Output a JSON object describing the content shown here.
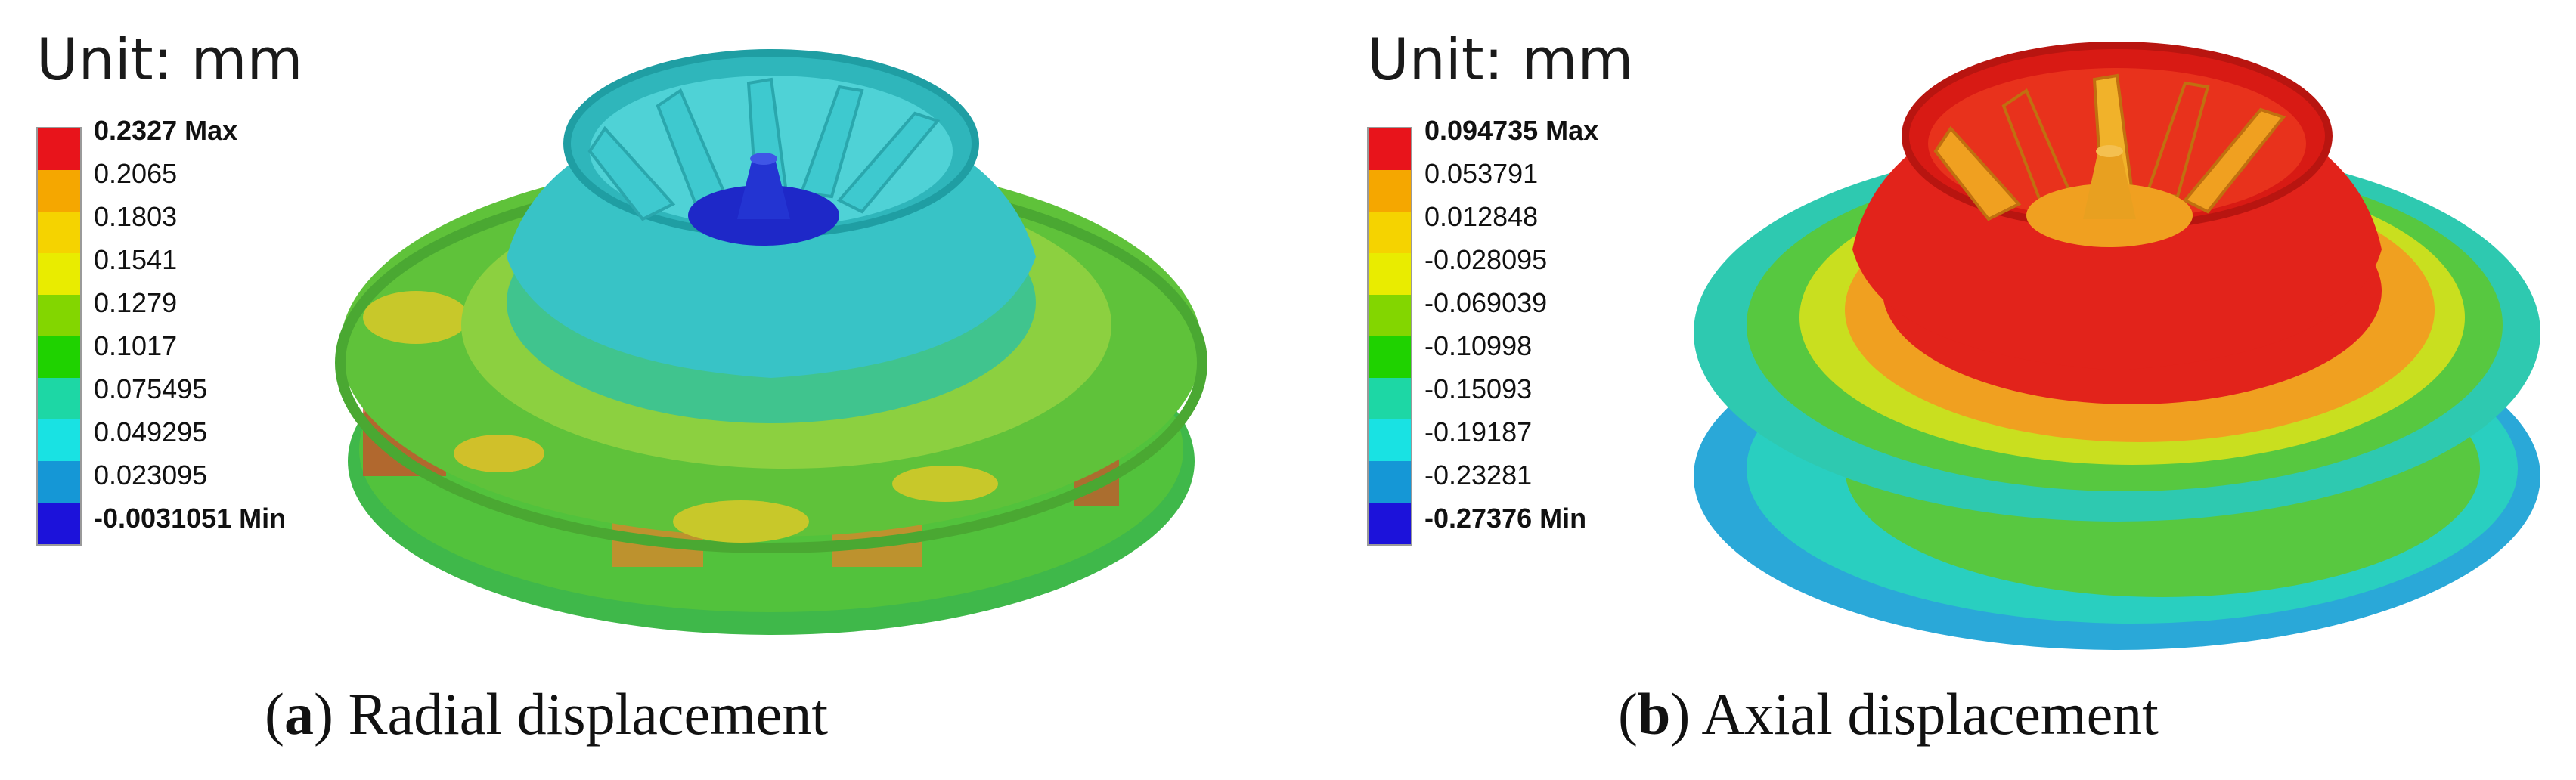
{
  "panels": [
    {
      "unit_label": "Unit: mm",
      "legend": {
        "max_label": "0.2327 Max",
        "min_label": "-0.0031051 Min",
        "values": [
          "0.2065",
          "0.1803",
          "0.1541",
          "0.1279",
          "0.1017",
          "0.075495",
          "0.049295",
          "0.023095"
        ],
        "colors": [
          "#e8141b",
          "#f5a700",
          "#f5d300",
          "#e9ec00",
          "#83d600",
          "#1fd200",
          "#1dd7a5",
          "#19e2e3",
          "#1597d6",
          "#1c12da"
        ]
      },
      "caption_letter": "a",
      "caption_text": "Radial displacement"
    },
    {
      "unit_label": "Unit: mm",
      "legend": {
        "max_label": "0.094735 Max",
        "min_label": "-0.27376 Min",
        "values": [
          "0.053791",
          "0.012848",
          "-0.028095",
          "-0.069039",
          "-0.10998",
          "-0.15093",
          "-0.19187",
          "-0.23281"
        ],
        "colors": [
          "#e8141b",
          "#f5a700",
          "#f5d300",
          "#e9ec00",
          "#83d600",
          "#1fd200",
          "#1dd7a5",
          "#19e2e3",
          "#1597d6",
          "#1c12da"
        ]
      },
      "caption_letter": "b",
      "caption_text": "Axial displacement"
    }
  ],
  "impeller_colors": {
    "radial": {
      "disk": "#5fc23a",
      "disk_patch": "#c8c82a",
      "shroud": "#34c5c8",
      "hub": "#1e28c8",
      "blade": "#3fcfd4",
      "band": "#56b83a",
      "warm": "#d9a020"
    },
    "axial": {
      "disk": "#2ec9b0",
      "disk_patch": "#f0a020",
      "shroud": "#e2231b",
      "hub": "#e8a020",
      "blade": "#f1b22a",
      "band": "#3aa0d8",
      "warm": "#d8e020"
    }
  }
}
